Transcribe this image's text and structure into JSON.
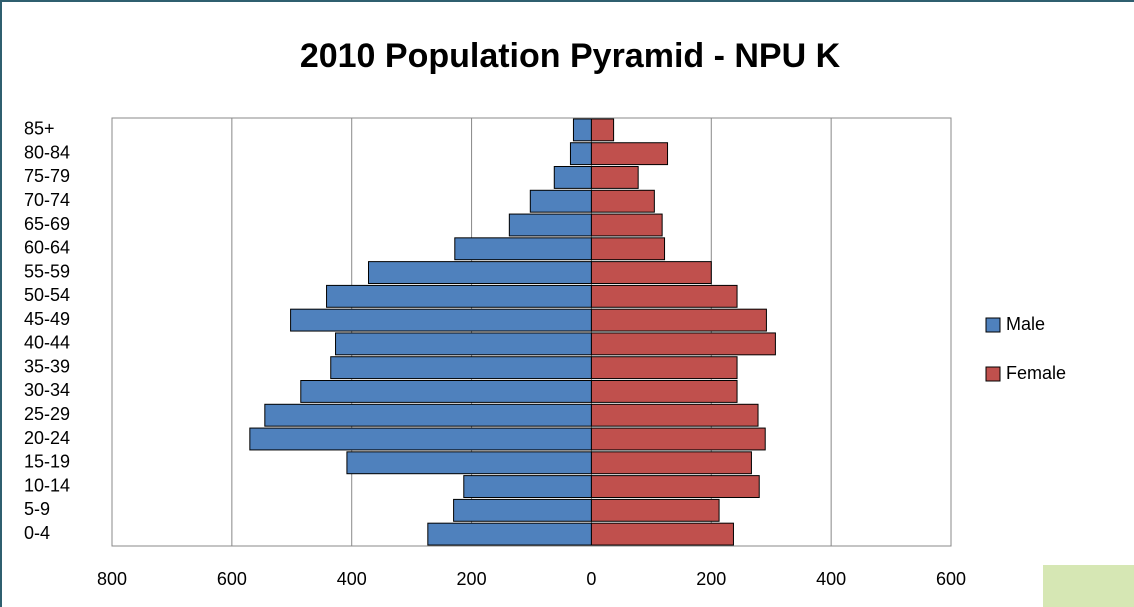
{
  "chart_data": {
    "type": "bar",
    "orientation": "horizontal",
    "title": "2010 Population Pyramid - NPU K",
    "categories": [
      "0-4",
      "5-9",
      "10-14",
      "15-19",
      "20-24",
      "25-29",
      "30-34",
      "35-39",
      "40-44",
      "45-49",
      "50-54",
      "55-59",
      "60-64",
      "65-69",
      "70-74",
      "75-79",
      "80-84",
      "85+"
    ],
    "series": [
      {
        "name": "Male",
        "color": "#4f81bd",
        "values": [
          -273,
          -230,
          -213,
          -408,
          -570,
          -545,
          -485,
          -435,
          -427,
          -502,
          -442,
          -372,
          -228,
          -137,
          -102,
          -62,
          -35,
          -30
        ]
      },
      {
        "name": "Female",
        "color": "#c0504d",
        "values": [
          237,
          213,
          280,
          267,
          290,
          278,
          243,
          243,
          307,
          292,
          243,
          200,
          122,
          118,
          105,
          78,
          127,
          37
        ]
      }
    ],
    "xlim": [
      -800,
      600
    ],
    "xticks": [
      {
        "value": -800,
        "label": "800"
      },
      {
        "value": -600,
        "label": "600"
      },
      {
        "value": -400,
        "label": "400"
      },
      {
        "value": -200,
        "label": "200"
      },
      0,
      200,
      400,
      600
    ],
    "grid": true,
    "legend": "right"
  }
}
